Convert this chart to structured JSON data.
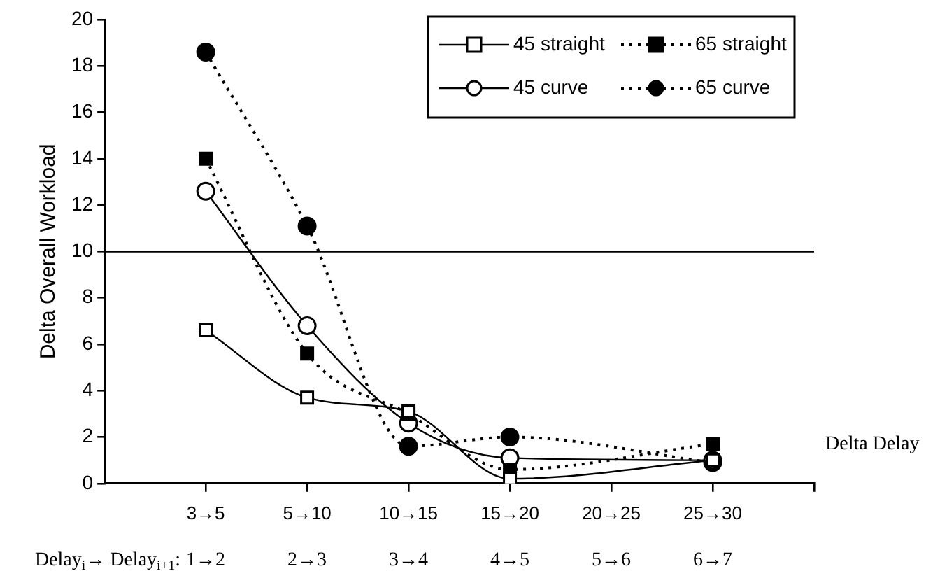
{
  "chart_data": {
    "type": "line",
    "ylabel": "Delta Overall Workload",
    "xlabel": "Delta Delay",
    "categories": [
      "3→5",
      "5→10",
      "10→15",
      "15→20",
      "20→25",
      "25→30"
    ],
    "series": [
      {
        "name": "45 straight",
        "color": "#000000",
        "marker": "square",
        "line_style": "solid",
        "values": [
          6.6,
          3.7,
          3.1,
          0.2,
          null,
          1.0
        ]
      },
      {
        "name": "65 straight",
        "color": "#000000",
        "marker": "square",
        "line_style": "dotted",
        "values": [
          14.0,
          5.6,
          3.0,
          0.6,
          null,
          1.7
        ]
      },
      {
        "name": "45 curve",
        "color": "#000000",
        "marker": "circle",
        "line_style": "solid",
        "values": [
          12.6,
          6.8,
          2.6,
          1.1,
          null,
          1.0
        ]
      },
      {
        "name": "65 curve",
        "color": "#000000",
        "marker": "circle",
        "line_style": "dotted",
        "values": [
          18.6,
          11.1,
          1.6,
          2.0,
          null,
          0.9
        ]
      }
    ],
    "ylim": [
      0,
      20
    ],
    "yticks": [
      0,
      2,
      4,
      6,
      8,
      10,
      12,
      14,
      16,
      18,
      20
    ],
    "ref_lines": [
      {
        "axis": "y",
        "value": 10,
        "color": "#000000"
      }
    ],
    "annotations": [
      "Delay$_{i}$→ Delay$_{i+1}$:",
      "1→2",
      "2→3",
      "3→4",
      "4→5",
      "5→6",
      "6→7"
    ],
    "grid": false,
    "legend": "top right"
  }
}
